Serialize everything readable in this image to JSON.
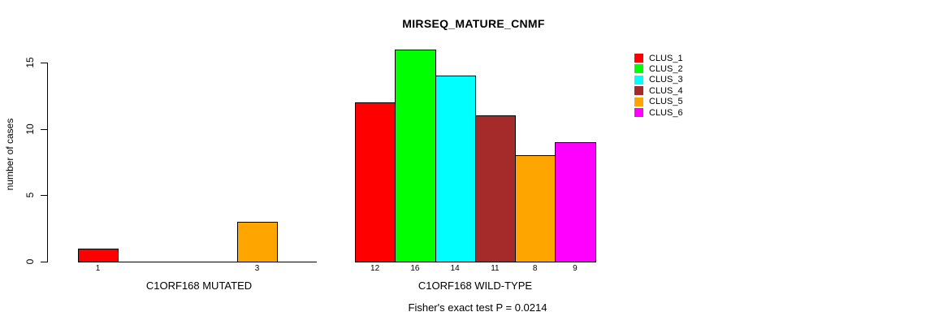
{
  "chart_data": {
    "type": "bar",
    "title": "MIRSEQ_MATURE_CNMF",
    "ylabel": "number of cases",
    "xlabel": "",
    "ylim": [
      0,
      16
    ],
    "yticks": [
      0,
      5,
      10,
      15
    ],
    "grid": false,
    "legend_position": "right",
    "legend": [
      {
        "label": "CLUS_1",
        "color": "#FF0000"
      },
      {
        "label": "CLUS_2",
        "color": "#00FF00"
      },
      {
        "label": "CLUS_3",
        "color": "#00FFFF"
      },
      {
        "label": "CLUS_4",
        "color": "#A52A2A"
      },
      {
        "label": "CLUS_5",
        "color": "#FFA500"
      },
      {
        "label": "CLUS_6",
        "color": "#FF00FF"
      }
    ],
    "groups": [
      {
        "label": "C1ORF168 MUTATED",
        "values": [
          1,
          0,
          0,
          0,
          3,
          0
        ]
      },
      {
        "label": "C1ORF168 WILD-TYPE",
        "values": [
          12,
          16,
          14,
          11,
          8,
          9
        ]
      }
    ],
    "annotation": "Fisher's exact test P = 0.0214"
  },
  "colors": {
    "background": "#FFFFFF",
    "axis": "#000000",
    "text": "#000000"
  }
}
